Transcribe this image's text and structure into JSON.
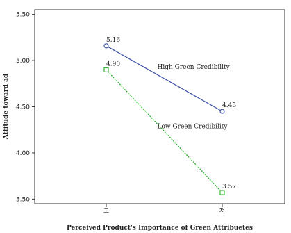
{
  "chart_data": {
    "type": "line",
    "categories": [
      "고",
      "저"
    ],
    "series": [
      {
        "name": "High Green Credibility",
        "values": [
          5.16,
          4.45
        ],
        "data_labels": [
          "5.16",
          "4.45"
        ],
        "color": "#3a4fa3",
        "marker": "circle",
        "line_style": "solid"
      },
      {
        "name": "Low Green Credibility",
        "values": [
          4.9,
          3.57
        ],
        "data_labels": [
          "4.90",
          "3.57"
        ],
        "color": "#22b022",
        "marker": "square",
        "line_style": "dashed"
      }
    ],
    "xlabel": "Perceived Product's Importance of Green Attribuetes",
    "ylabel": "Attitude toward ad",
    "ylim": [
      3.45,
      5.55
    ],
    "yticks": [
      "3.50",
      "4.00",
      "4.50",
      "5.00",
      "5.50"
    ],
    "grid": false,
    "legend": "none"
  }
}
